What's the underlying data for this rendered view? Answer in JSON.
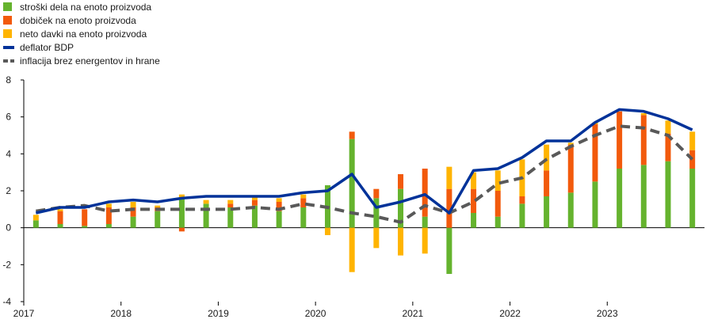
{
  "chart_data": {
    "type": "bar",
    "stacked": true,
    "title": "",
    "xlabel": "",
    "ylabel": "",
    "ylim": [
      -4,
      8
    ],
    "yticks": [
      -4,
      -2,
      0,
      2,
      4,
      6,
      8
    ],
    "grid": false,
    "legend_position": "top-left",
    "x_year_labels": [
      "2017",
      "2018",
      "2019",
      "2020",
      "2021",
      "2022",
      "2023"
    ],
    "quarters": [
      "2017Q1",
      "2017Q2",
      "2017Q3",
      "2017Q4",
      "2018Q1",
      "2018Q2",
      "2018Q3",
      "2018Q4",
      "2019Q1",
      "2019Q2",
      "2019Q3",
      "2019Q4",
      "2020Q1",
      "2020Q2",
      "2020Q3",
      "2020Q4",
      "2021Q1",
      "2021Q2",
      "2021Q3",
      "2021Q4",
      "2022Q1",
      "2022Q2",
      "2022Q3",
      "2022Q4",
      "2023Q1",
      "2023Q2",
      "2023Q3",
      "2023Q4"
    ],
    "bar_series": [
      {
        "name": "stroški dela na enoto proizvoda",
        "color": "#65b32e",
        "values": [
          0.4,
          0.2,
          0.1,
          0.2,
          0.6,
          0.9,
          1.6,
          1.3,
          1.1,
          1.2,
          0.9,
          1.1,
          2.3,
          4.8,
          1.6,
          2.1,
          0.6,
          -2.5,
          0.8,
          0.6,
          1.3,
          1.7,
          1.9,
          2.5,
          3.2,
          3.4,
          3.6,
          3.2
        ]
      },
      {
        "name": "dobiček na enoto proizvoda",
        "color": "#f25a0c",
        "values": [
          0.0,
          0.7,
          0.9,
          0.9,
          0.5,
          0.2,
          -0.2,
          0.0,
          0.2,
          0.3,
          0.5,
          0.5,
          0.0,
          0.4,
          0.5,
          0.8,
          2.6,
          2.1,
          1.3,
          1.4,
          0.4,
          1.4,
          2.6,
          3.1,
          3.1,
          2.7,
          1.5,
          1.0
        ]
      },
      {
        "name": "neto davki na enoto proizvoda",
        "color": "#ffb400",
        "values": [
          0.3,
          0.1,
          0.0,
          0.2,
          0.3,
          0.1,
          0.2,
          0.2,
          0.2,
          0.2,
          0.2,
          0.2,
          -0.4,
          -2.4,
          -1.1,
          -1.5,
          -1.4,
          1.2,
          0.9,
          1.1,
          2.0,
          1.4,
          0.1,
          0.1,
          0.0,
          0.1,
          0.7,
          1.0
        ]
      }
    ],
    "line_series": [
      {
        "name": "deflator BDP",
        "color": "#003299",
        "style": "solid",
        "values": [
          0.8,
          1.1,
          1.1,
          1.4,
          1.5,
          1.4,
          1.6,
          1.7,
          1.7,
          1.7,
          1.7,
          1.9,
          2.0,
          2.9,
          1.1,
          1.4,
          1.8,
          0.8,
          3.1,
          3.2,
          3.8,
          4.7,
          4.7,
          5.7,
          6.4,
          6.3,
          5.9,
          5.3
        ]
      },
      {
        "name": "inflacija brez energentov in hrane",
        "color": "#595959",
        "style": "dashed",
        "values": [
          0.9,
          1.1,
          1.2,
          0.9,
          1.0,
          1.0,
          1.0,
          1.0,
          1.0,
          1.1,
          1.0,
          1.3,
          1.1,
          0.8,
          0.6,
          0.3,
          1.2,
          0.8,
          1.4,
          2.4,
          2.7,
          3.7,
          4.4,
          5.0,
          5.5,
          5.4,
          5.0,
          3.7
        ]
      }
    ]
  }
}
